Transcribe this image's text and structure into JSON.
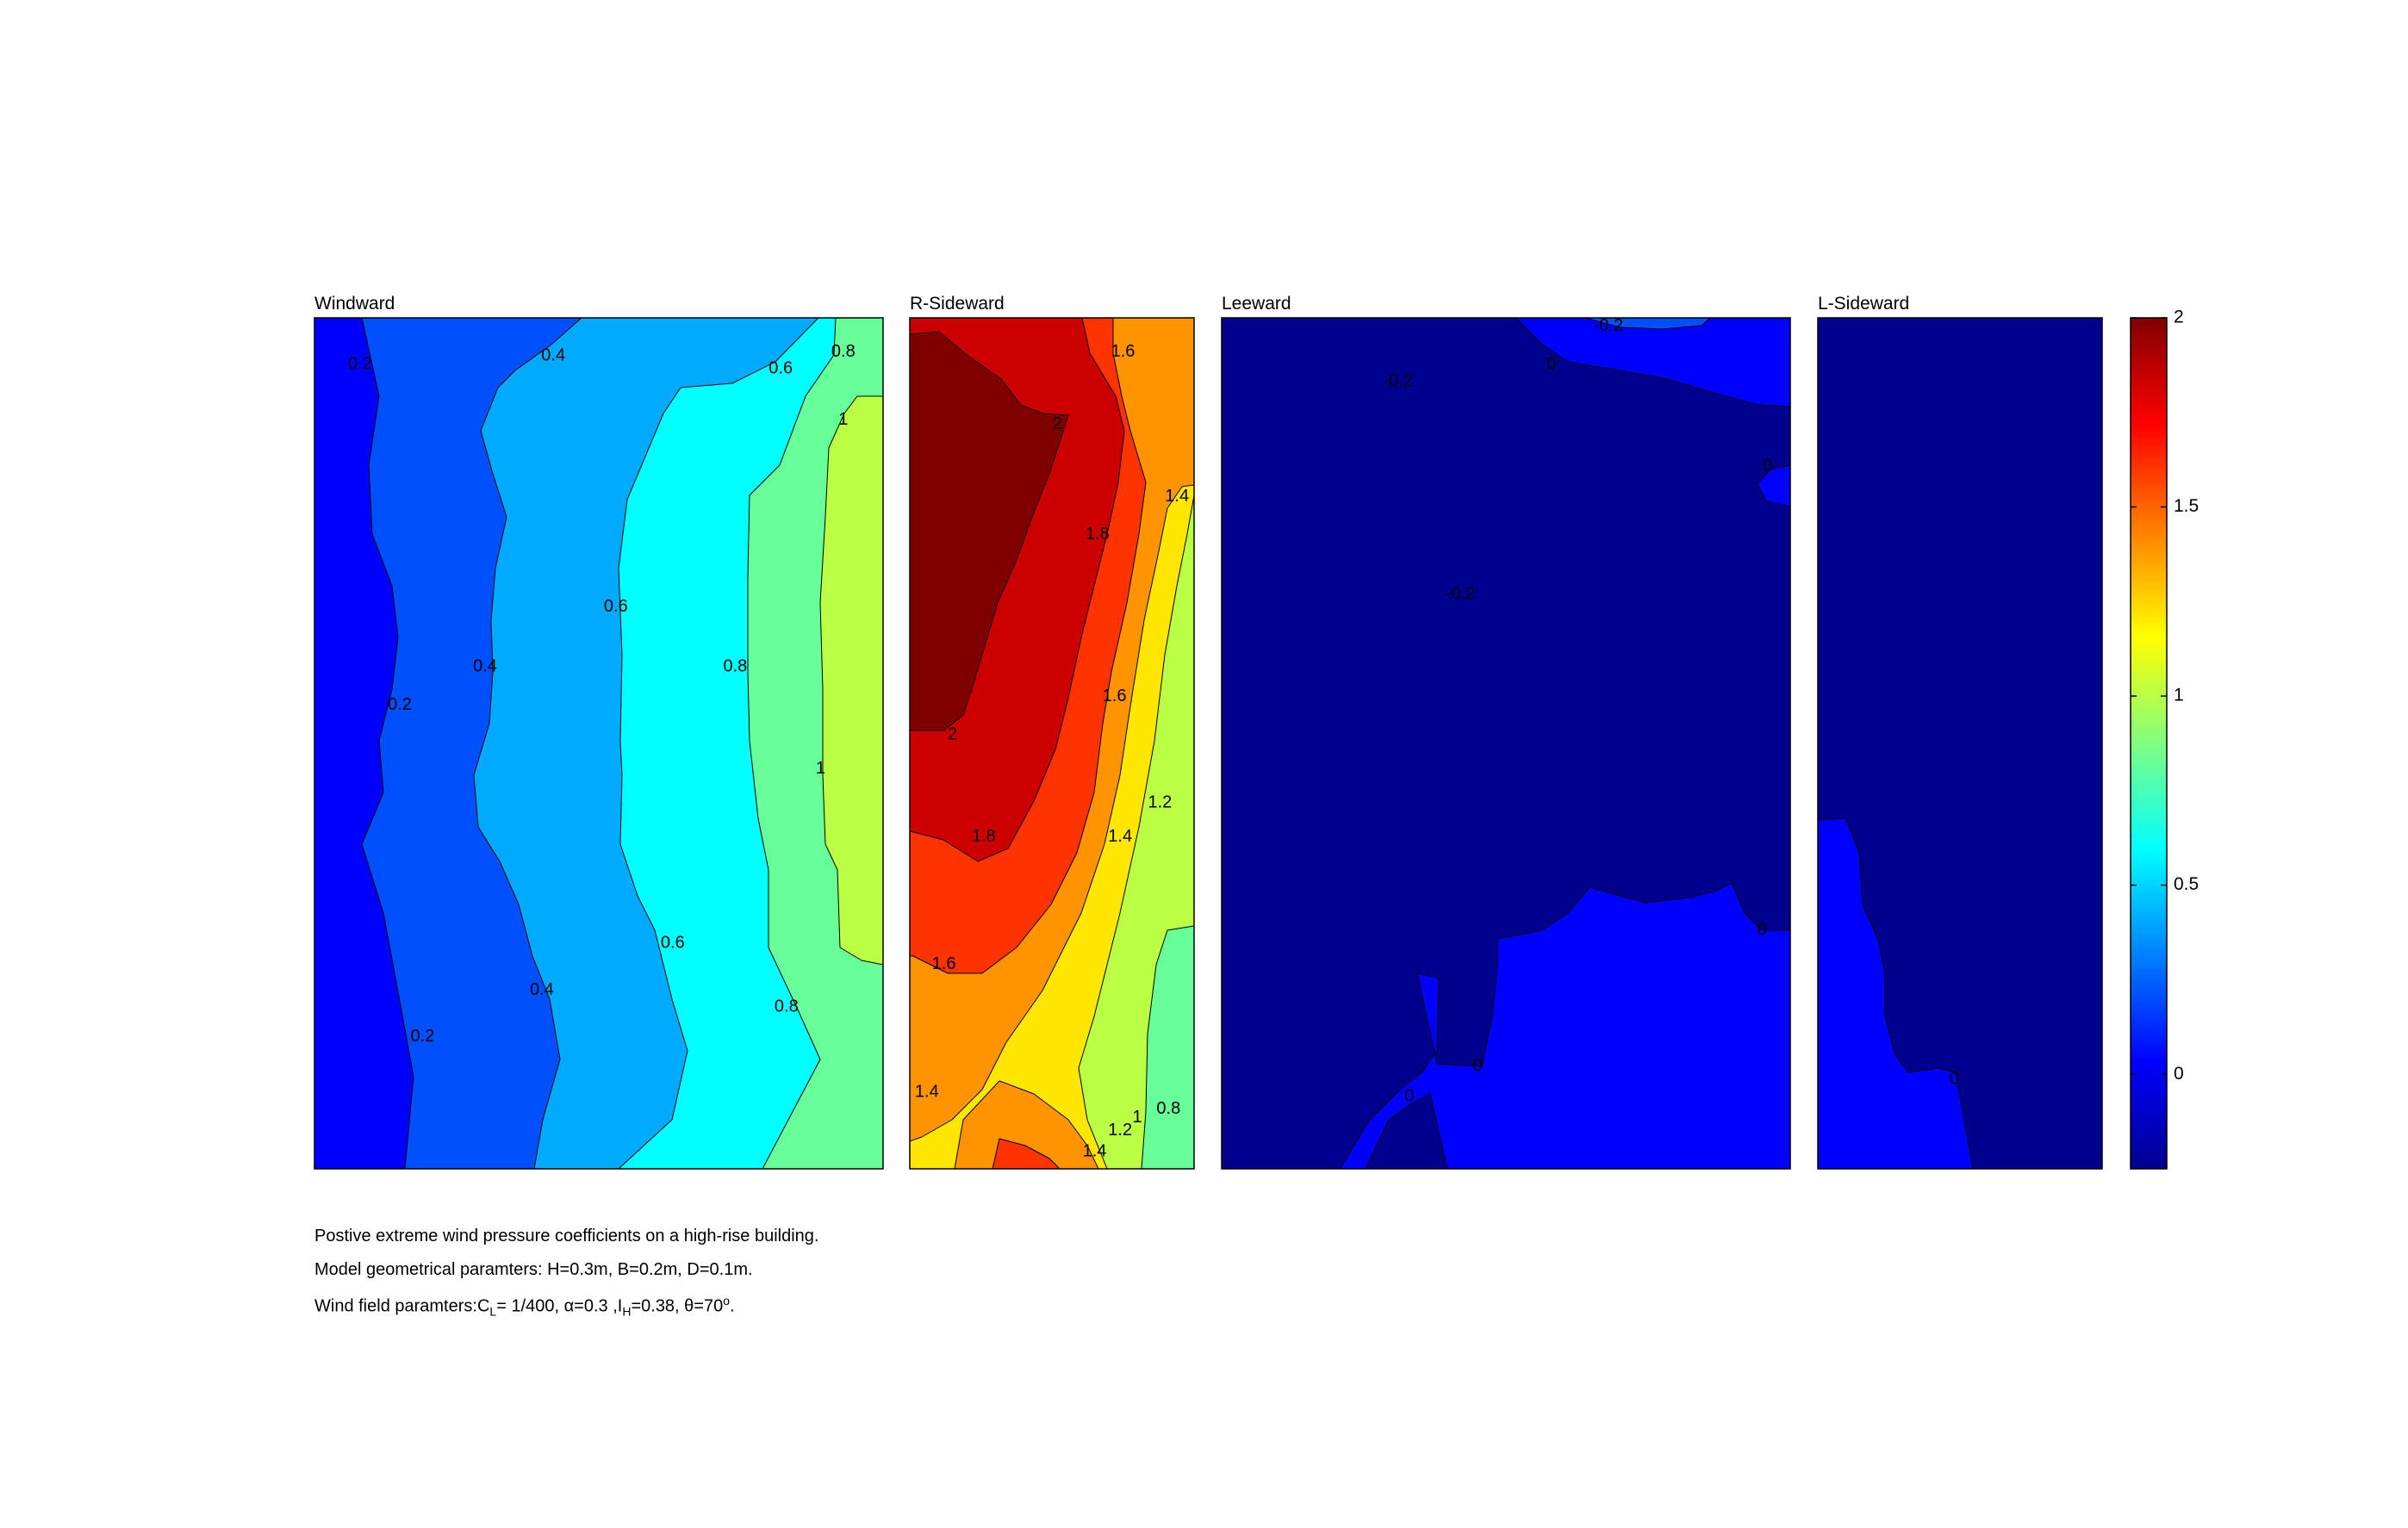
{
  "chart_data": {
    "type": "contour",
    "colormap": "jet",
    "colorbar": {
      "range": [
        -0.25,
        2.0
      ],
      "ticks": [
        {
          "value": 0,
          "label": "0"
        },
        {
          "value": 0.5,
          "label": "0.5"
        },
        {
          "value": 1,
          "label": "1"
        },
        {
          "value": 1.5,
          "label": "1.5"
        },
        {
          "value": 2,
          "label": "2"
        }
      ],
      "placement": "right"
    },
    "panels": [
      {
        "title": "Windward",
        "levels": [
          0.1,
          0.3,
          0.5,
          0.7,
          0.9,
          1.1
        ],
        "contour_labels": [
          {
            "text": "0.2",
            "u": 0.08,
            "v": 0.055
          },
          {
            "text": "0.4",
            "u": 0.42,
            "v": 0.045
          },
          {
            "text": "0.6",
            "u": 0.82,
            "v": 0.06
          },
          {
            "text": "0.8",
            "u": 0.93,
            "v": 0.04
          },
          {
            "text": "1",
            "u": 0.93,
            "v": 0.12
          },
          {
            "text": "0.6",
            "u": 0.53,
            "v": 0.34
          },
          {
            "text": "0.4",
            "u": 0.3,
            "v": 0.41
          },
          {
            "text": "0.2",
            "u": 0.15,
            "v": 0.455
          },
          {
            "text": "0.8",
            "u": 0.74,
            "v": 0.41
          },
          {
            "text": "1",
            "u": 0.89,
            "v": 0.53
          },
          {
            "text": "0.6",
            "u": 0.63,
            "v": 0.735
          },
          {
            "text": "0.4",
            "u": 0.4,
            "v": 0.79
          },
          {
            "text": "0.8",
            "u": 0.83,
            "v": 0.81
          },
          {
            "text": "0.2",
            "u": 0.19,
            "v": 0.845
          }
        ]
      },
      {
        "title": "R-Sideward",
        "levels": [
          1.1,
          1.3,
          1.5,
          1.7,
          1.9
        ],
        "contour_labels": [
          {
            "text": "1.6",
            "u": 0.75,
            "v": 0.04
          },
          {
            "text": "2",
            "u": 0.52,
            "v": 0.125
          },
          {
            "text": "1.4",
            "u": 0.94,
            "v": 0.21
          },
          {
            "text": "1.8",
            "u": 0.66,
            "v": 0.255
          },
          {
            "text": "1.6",
            "u": 0.72,
            "v": 0.445
          },
          {
            "text": "2",
            "u": 0.15,
            "v": 0.49
          },
          {
            "text": "1.2",
            "u": 0.88,
            "v": 0.57
          },
          {
            "text": "1.8",
            "u": 0.26,
            "v": 0.61
          },
          {
            "text": "1.4",
            "u": 0.74,
            "v": 0.61
          },
          {
            "text": "1.6",
            "u": 0.12,
            "v": 0.76
          },
          {
            "text": "1.4",
            "u": 0.06,
            "v": 0.91
          },
          {
            "text": "1.2",
            "u": 0.74,
            "v": 0.955
          },
          {
            "text": "1",
            "u": 0.8,
            "v": 0.94
          },
          {
            "text": "0.8",
            "u": 0.91,
            "v": 0.93
          },
          {
            "text": "1.4",
            "u": 0.65,
            "v": 0.98
          }
        ]
      },
      {
        "title": "Leeward",
        "levels": [
          -0.1
        ],
        "contour_labels": [
          {
            "text": "-0.2",
            "u": 0.68,
            "v": 0.01
          },
          {
            "text": "0",
            "u": 0.58,
            "v": 0.055
          },
          {
            "text": "-0.2",
            "u": 0.31,
            "v": 0.075
          },
          {
            "text": "0",
            "u": 0.96,
            "v": 0.175
          },
          {
            "text": "-0.2",
            "u": 0.42,
            "v": 0.325
          },
          {
            "text": "0",
            "u": 0.95,
            "v": 0.72
          },
          {
            "text": "0",
            "u": 0.45,
            "v": 0.88
          },
          {
            "text": "0",
            "u": 0.33,
            "v": 0.915
          }
        ]
      },
      {
        "title": "L-Sideward",
        "levels": [
          -0.1
        ],
        "contour_labels": [
          {
            "text": "0",
            "u": 0.48,
            "v": 0.895
          }
        ]
      }
    ]
  },
  "caption": {
    "line1": "Postive extreme  wind pressure coefficients on a high-rise building.",
    "line2": "Model geometrical paramters: H=0.3m, B=0.2m, D=0.1m.",
    "line3_a": "Wind field paramters:C",
    "line3_sub_L": "L",
    "line3_b": "= 1/400, α=0.3 ,I",
    "line3_sub_H": "H",
    "line3_c": "=0.38, θ=70",
    "line3_sup": "o",
    "line3_d": "."
  }
}
